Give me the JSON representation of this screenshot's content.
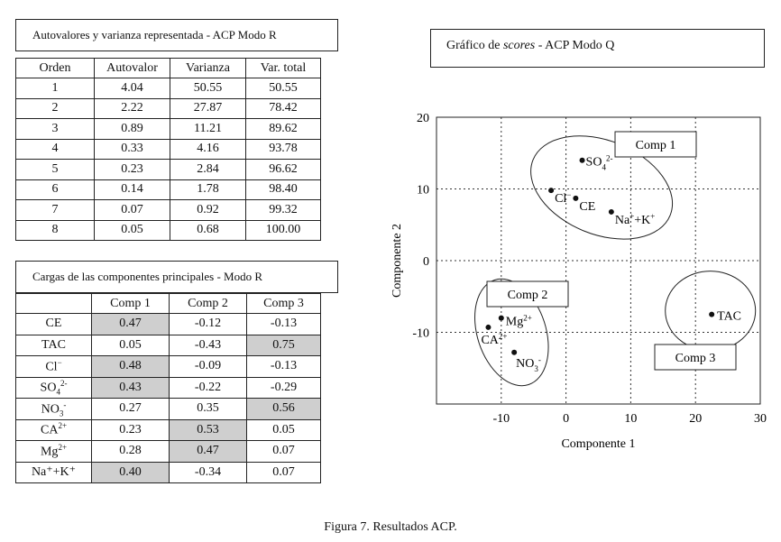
{
  "table1": {
    "title": "Autovalores y varianza representada - ACP Modo R",
    "headers": [
      "Orden",
      "Autovalor",
      "Varianza",
      "Var. total"
    ],
    "rows": [
      [
        "1",
        "4.04",
        "50.55",
        "50.55"
      ],
      [
        "2",
        "2.22",
        "27.87",
        "78.42"
      ],
      [
        "3",
        "0.89",
        "11.21",
        "89.62"
      ],
      [
        "4",
        "0.33",
        "4.16",
        "93.78"
      ],
      [
        "5",
        "0.23",
        "2.84",
        "96.62"
      ],
      [
        "6",
        "0.14",
        "1.78",
        "98.40"
      ],
      [
        "7",
        "0.07",
        "0.92",
        "99.32"
      ],
      [
        "8",
        "0.05",
        "0.68",
        "100.00"
      ]
    ]
  },
  "table2": {
    "title": "Cargas de las componentes principales - Modo R",
    "headers": [
      "",
      "Comp 1",
      "Comp 2",
      "Comp 3"
    ],
    "rows": [
      {
        "label": "CE",
        "sup": "",
        "sub": "",
        "values": [
          "0.47",
          "-0.12",
          "-0.13"
        ],
        "shaded": [
          true,
          false,
          false
        ]
      },
      {
        "label": "TAC",
        "sup": "",
        "sub": "",
        "values": [
          "0.05",
          "-0.43",
          "0.75"
        ],
        "shaded": [
          false,
          false,
          true
        ]
      },
      {
        "label": "Cl",
        "sup": "−",
        "sub": "",
        "values": [
          "0.48",
          "-0.09",
          "-0.13"
        ],
        "shaded": [
          true,
          false,
          false
        ]
      },
      {
        "label": "SO",
        "sup": "2-",
        "sub": "4",
        "values": [
          "0.43",
          "-0.22",
          "-0.29"
        ],
        "shaded": [
          true,
          false,
          false
        ]
      },
      {
        "label": "NO",
        "sup": "-",
        "sub": "3",
        "values": [
          "0.27",
          "0.35",
          "0.56"
        ],
        "shaded": [
          false,
          false,
          true
        ]
      },
      {
        "label": "CA",
        "sup": "2+",
        "sub": "",
        "values": [
          "0.23",
          "0.53",
          "0.05"
        ],
        "shaded": [
          false,
          true,
          false
        ]
      },
      {
        "label": "Mg",
        "sup": "2+",
        "sub": "",
        "values": [
          "0.28",
          "0.47",
          "0.07"
        ],
        "shaded": [
          false,
          true,
          false
        ]
      },
      {
        "label": "Na⁺+K⁺",
        "sup": "",
        "sub": "",
        "values": [
          "0.40",
          "-0.34",
          "0.07"
        ],
        "shaded": [
          true,
          false,
          false
        ]
      }
    ]
  },
  "chart_title": {
    "pre": "Gráfico de ",
    "italic": "scores",
    "post": " - ACP Modo Q"
  },
  "chart_data": {
    "type": "scatter",
    "title": "Gráfico de scores - ACP Modo Q",
    "xlabel": "Componente 1",
    "ylabel": "Componente 2",
    "xlim": [
      -20,
      30
    ],
    "ylim": [
      -20,
      20
    ],
    "xticks": [
      -10,
      0,
      10,
      20,
      30
    ],
    "yticks": [
      -10,
      0,
      10,
      20
    ],
    "grid": true,
    "points": [
      {
        "label": "SO4 2-",
        "x": 2.5,
        "y": 14
      },
      {
        "label": "Cl-",
        "x": -2.3,
        "y": 9.8
      },
      {
        "label": "CE",
        "x": 1.5,
        "y": 8.7
      },
      {
        "label": "Na+ +K+",
        "x": 7,
        "y": 6.8
      },
      {
        "label": "Mg2+",
        "x": -10,
        "y": -8
      },
      {
        "label": "CA2+",
        "x": -12,
        "y": -9.3
      },
      {
        "label": "NO3-",
        "x": -8,
        "y": -12.8
      },
      {
        "label": "TAC",
        "x": 22.5,
        "y": -7.5
      }
    ],
    "groups": [
      {
        "name": "Comp 1",
        "members": [
          "SO4 2-",
          "Cl-",
          "CE",
          "Na+ +K+"
        ]
      },
      {
        "name": "Comp 2",
        "members": [
          "Mg2+",
          "CA2+",
          "NO3-"
        ]
      },
      {
        "name": "Comp 3",
        "members": [
          "TAC"
        ]
      }
    ]
  },
  "caption": "Figura 7. Resultados ACP."
}
